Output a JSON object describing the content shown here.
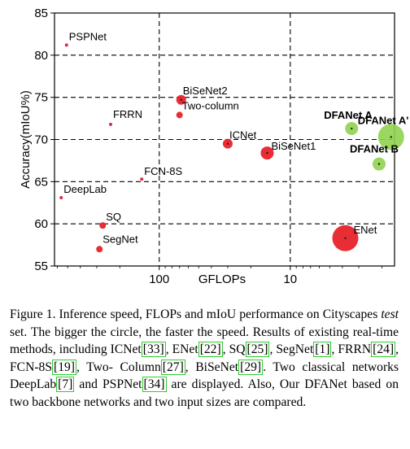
{
  "chart_data": {
    "type": "scatter",
    "xlabel": "GFLOPs",
    "ylabel": "Accuracy(mIoU%)",
    "x_scale": "log",
    "x_reversed": true,
    "xlim": [
      630,
      1.6
    ],
    "ylim": [
      55,
      85
    ],
    "x_ticks": [
      100,
      10
    ],
    "x_tick_labels": [
      "100",
      "10"
    ],
    "y_ticks": [
      55,
      60,
      65,
      70,
      75,
      80,
      85
    ],
    "y_tick_labels": [
      "55",
      "60",
      "65",
      "70",
      "75",
      "80",
      "85"
    ],
    "grid": true,
    "points": [
      {
        "label": "PSPNet",
        "gflops": 510,
        "miou": 81.2,
        "size": "tiny",
        "color": "#d62040",
        "bold": false
      },
      {
        "label": "FRRN",
        "gflops": 235,
        "miou": 71.8,
        "size": "tiny",
        "color": "#d62040",
        "bold": false
      },
      {
        "label": "DeepLab",
        "gflops": 560,
        "miou": 63.1,
        "size": "tiny",
        "color": "#d62040",
        "bold": false
      },
      {
        "label": "FCN-8S",
        "gflops": 136,
        "miou": 65.3,
        "size": "tiny",
        "color": "#d62040",
        "bold": false
      },
      {
        "label": "SQ",
        "gflops": 270,
        "miou": 59.8,
        "size": "small",
        "color": "#e8222a",
        "bold": false
      },
      {
        "label": "SegNet",
        "gflops": 286,
        "miou": 57.0,
        "size": "small",
        "color": "#e8222a",
        "bold": false
      },
      {
        "label": "BiSeNet2",
        "gflops": 68,
        "miou": 74.7,
        "size": "medium",
        "color": "#e8222a",
        "bold": false
      },
      {
        "label": "Two-column",
        "gflops": 70,
        "miou": 72.9,
        "size": "small",
        "color": "#e8222a",
        "bold": false
      },
      {
        "label": "ICNet",
        "gflops": 30,
        "miou": 69.5,
        "size": "medium",
        "color": "#e8222a",
        "bold": false
      },
      {
        "label": "BiSeNet1",
        "gflops": 15,
        "miou": 68.4,
        "size": "large",
        "color": "#e8222a",
        "bold": false
      },
      {
        "label": "ENet",
        "gflops": 3.8,
        "miou": 58.3,
        "size": "xlarge",
        "color": "#e8222a",
        "bold": false
      },
      {
        "label": "DFANet A",
        "gflops": 3.4,
        "miou": 71.3,
        "size": "large",
        "color": "#8fd14f",
        "bold": true
      },
      {
        "label": "DFANet A'",
        "gflops": 1.7,
        "miou": 70.3,
        "size": "xlarge",
        "color": "#8fd14f",
        "bold": true
      },
      {
        "label": "DFANet B",
        "gflops": 2.1,
        "miou": 67.1,
        "size": "large",
        "color": "#8fd14f",
        "bold": true
      }
    ]
  },
  "caption": {
    "line1": "Figure 1. Inference speed, FLOPs and mIoU performance on",
    "line2_a": "Cityscapes ",
    "line2_b": "test",
    "line2_c": " set.   The bigger the circle, the faster the",
    "line3": "speed. Results of existing real-time methods, including ICNet",
    "ref_icnet": "[33]",
    "line4_a": "ENet",
    "ref_enet": "[22]",
    "line4_b": ", SQ",
    "ref_sq": "[25]",
    "line4_c": ", SegNet",
    "ref_segnet": "[1]",
    "line4_d": ", FRRN",
    "ref_frrn": "[24]",
    "line4_e": ", FCN-8S",
    "ref_fcn": "[19]",
    "line4_f": ", Two-",
    "line5_a": "Column",
    "ref_twocol": "[27]",
    "line5_b": ", BiSeNet",
    "ref_bisenet": "[29]",
    "line5_c": ". Two classical networks DeepLab",
    "ref_deeplab": "[7]",
    "line6_a": "and PSPNet",
    "ref_pspnet": "[34]",
    "line6_b": " are displayed. Also, Our DFANet based on two",
    "line7": "backbone networks and two input sizes are compared."
  }
}
